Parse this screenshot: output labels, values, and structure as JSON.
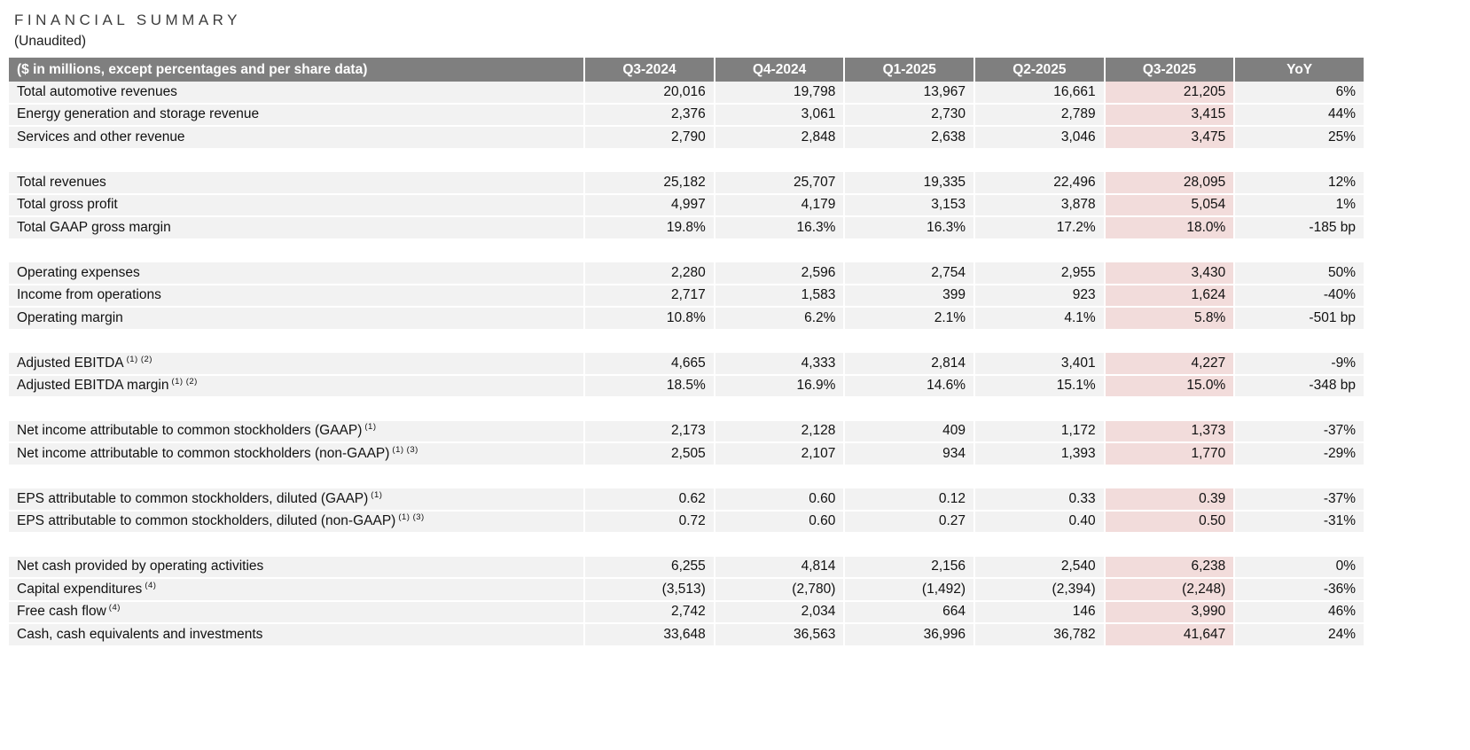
{
  "page": {
    "title": "FINANCIAL SUMMARY",
    "subtitle": "(Unaudited)"
  },
  "table": {
    "header": {
      "label": "($ in millions, except percentages and per share data)",
      "columns": [
        "Q3-2024",
        "Q4-2024",
        "Q1-2025",
        "Q2-2025",
        "Q3-2025",
        "YoY"
      ]
    },
    "highlight_column": "Q3-2025",
    "highlight_column_index": 4,
    "colors": {
      "header_bg": "#7f7f7f",
      "header_text": "#ffffff",
      "row_bg": "#f2f2f2",
      "highlight_bg": "#f2dcdb"
    },
    "groups": [
      {
        "rows": [
          {
            "label": "Total automotive revenues",
            "sup": "",
            "values": [
              "20,016",
              "19,798",
              "13,967",
              "16,661",
              "21,205",
              "6%"
            ]
          },
          {
            "label": "Energy generation and storage revenue",
            "sup": "",
            "values": [
              "2,376",
              "3,061",
              "2,730",
              "2,789",
              "3,415",
              "44%"
            ]
          },
          {
            "label": "Services and other revenue",
            "sup": "",
            "values": [
              "2,790",
              "2,848",
              "2,638",
              "3,046",
              "3,475",
              "25%"
            ]
          }
        ]
      },
      {
        "rows": [
          {
            "label": "Total revenues",
            "sup": "",
            "values": [
              "25,182",
              "25,707",
              "19,335",
              "22,496",
              "28,095",
              "12%"
            ]
          },
          {
            "label": "Total gross profit",
            "sup": "",
            "values": [
              "4,997",
              "4,179",
              "3,153",
              "3,878",
              "5,054",
              "1%"
            ]
          },
          {
            "label": "Total GAAP gross margin",
            "sup": "",
            "values": [
              "19.8%",
              "16.3%",
              "16.3%",
              "17.2%",
              "18.0%",
              "-185 bp"
            ]
          }
        ]
      },
      {
        "rows": [
          {
            "label": "Operating expenses",
            "sup": "",
            "values": [
              "2,280",
              "2,596",
              "2,754",
              "2,955",
              "3,430",
              "50%"
            ]
          },
          {
            "label": "Income from operations",
            "sup": "",
            "values": [
              "2,717",
              "1,583",
              "399",
              "923",
              "1,624",
              "-40%"
            ]
          },
          {
            "label": "Operating margin",
            "sup": "",
            "values": [
              "10.8%",
              "6.2%",
              "2.1%",
              "4.1%",
              "5.8%",
              "-501 bp"
            ]
          }
        ]
      },
      {
        "rows": [
          {
            "label": "Adjusted EBITDA",
            "sup": "(1) (2)",
            "values": [
              "4,665",
              "4,333",
              "2,814",
              "3,401",
              "4,227",
              "-9%"
            ]
          },
          {
            "label": "Adjusted EBITDA margin",
            "sup": "(1) (2)",
            "values": [
              "18.5%",
              "16.9%",
              "14.6%",
              "15.1%",
              "15.0%",
              "-348 bp"
            ]
          }
        ]
      },
      {
        "rows": [
          {
            "label": "Net income attributable to common stockholders (GAAP)",
            "sup": "(1)",
            "values": [
              "2,173",
              "2,128",
              "409",
              "1,172",
              "1,373",
              "-37%"
            ]
          },
          {
            "label": "Net income attributable to common stockholders (non-GAAP)",
            "sup": "(1) (3)",
            "values": [
              "2,505",
              "2,107",
              "934",
              "1,393",
              "1,770",
              "-29%"
            ]
          }
        ]
      },
      {
        "rows": [
          {
            "label": "EPS attributable to common stockholders, diluted (GAAP)",
            "sup": "(1)",
            "values": [
              "0.62",
              "0.60",
              "0.12",
              "0.33",
              "0.39",
              "-37%"
            ]
          },
          {
            "label": "EPS attributable to common stockholders, diluted (non-GAAP)",
            "sup": "(1) (3)",
            "values": [
              "0.72",
              "0.60",
              "0.27",
              "0.40",
              "0.50",
              "-31%"
            ]
          }
        ]
      },
      {
        "rows": [
          {
            "label": "Net cash provided by operating activities",
            "sup": "",
            "values": [
              "6,255",
              "4,814",
              "2,156",
              "2,540",
              "6,238",
              "0%"
            ]
          },
          {
            "label": "Capital expenditures",
            "sup": "(4)",
            "values": [
              "(3,513)",
              "(2,780)",
              "(1,492)",
              "(2,394)",
              "(2,248)",
              "-36%"
            ]
          },
          {
            "label": "Free cash flow",
            "sup": "(4)",
            "values": [
              "2,742",
              "2,034",
              "664",
              "146",
              "3,990",
              "46%"
            ]
          },
          {
            "label": "Cash, cash equivalents and investments",
            "sup": "",
            "values": [
              "33,648",
              "36,563",
              "36,996",
              "36,782",
              "41,647",
              "24%"
            ]
          }
        ]
      }
    ]
  }
}
